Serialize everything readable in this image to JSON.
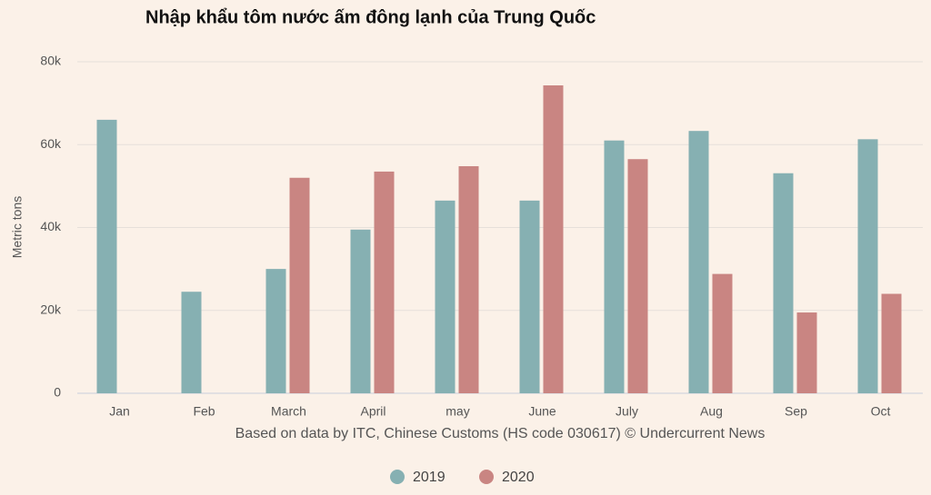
{
  "chart_data": {
    "type": "bar",
    "title": "Nhập khẩu tôm nước ấm đông lạnh của Trung Quốc",
    "ylabel": "Metric tons",
    "caption": "Based on data by ITC, Chinese Customs (HS code 030617) © Undercurrent News",
    "categories": [
      "Jan",
      "Feb",
      "March",
      "April",
      "may",
      "June",
      "July",
      "Aug",
      "Sep",
      "Oct"
    ],
    "series": [
      {
        "name": "2019",
        "color": "#86b0b2",
        "values": [
          66000,
          24500,
          30000,
          39500,
          46500,
          46500,
          61000,
          63300,
          53100,
          61300
        ]
      },
      {
        "name": "2020",
        "color": "#c98582",
        "values": [
          null,
          null,
          52000,
          53500,
          54800,
          74300,
          56500,
          28800,
          19500,
          24000
        ]
      }
    ],
    "ylim": [
      0,
      80000
    ],
    "yticks": [
      0,
      {
        "value": 20000,
        "label": "20k"
      },
      {
        "value": 40000,
        "label": "40k"
      },
      {
        "value": 60000,
        "label": "60k"
      },
      {
        "value": 80000,
        "label": "80k"
      }
    ],
    "grid": true,
    "legend": "bottom"
  }
}
